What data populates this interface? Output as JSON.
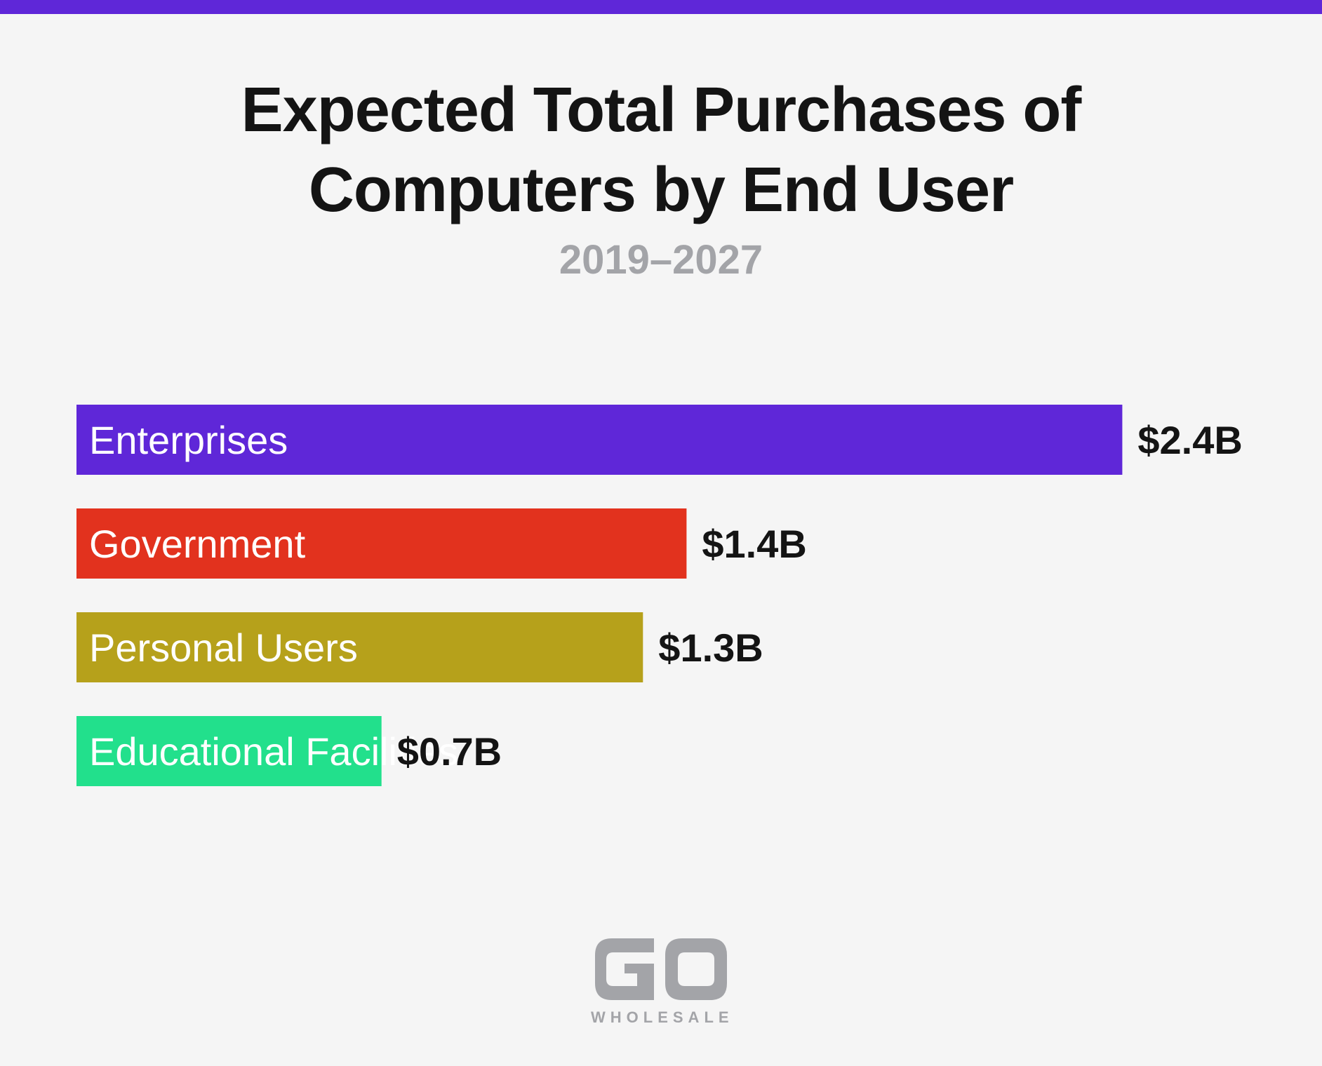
{
  "header": {
    "title_line1": "Expected Total Purchases of",
    "title_line2": "Computers by End User",
    "subtitle": "2019–2027"
  },
  "colors": {
    "top_band": "#5f27d8",
    "background": "#f5f5f5",
    "title": "#141414",
    "subtitle": "#a3a4a8",
    "logo": "#a3a4a8"
  },
  "chart_data": {
    "type": "bar",
    "orientation": "horizontal",
    "title": "Expected Total Purchases of Computers by End User",
    "subtitle": "2019–2027",
    "unit": "$B",
    "categories": [
      "Enterprises",
      "Government",
      "Personal Users",
      "Educational Facilities"
    ],
    "values": [
      2.4,
      1.4,
      1.3,
      0.7
    ],
    "value_labels": [
      "$2.4B",
      "$1.4B",
      "$1.3B",
      "$0.7B"
    ],
    "bar_colors": [
      "#5f27d8",
      "#e2321e",
      "#b6a11b",
      "#22e08c"
    ],
    "xlabel": "",
    "ylabel": "",
    "grid": false,
    "legend": "none"
  },
  "logo": {
    "mark": "GO",
    "wordmark": "WHOLESALE"
  }
}
